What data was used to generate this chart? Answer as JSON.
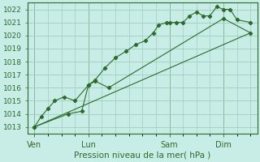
{
  "background_color": "#c8ede6",
  "grid_color": "#a0ccbe",
  "line_color": "#2d6a2d",
  "xlabel": "Pression niveau de la mer( hPa )",
  "ylim": [
    1012.5,
    1022.5
  ],
  "yticks": [
    1013,
    1014,
    1015,
    1016,
    1017,
    1018,
    1019,
    1020,
    1021,
    1022
  ],
  "xtick_labels": [
    "Ven",
    "Lun",
    "Sam",
    "Dim"
  ],
  "xtick_positions": [
    0,
    4,
    10,
    14
  ],
  "xlim": [
    -0.5,
    16.5
  ],
  "vline_positions": [
    0,
    4,
    10,
    14
  ],
  "series1_x": [
    0,
    0.5,
    1.0,
    1.5,
    2.2,
    3.0,
    4.0,
    4.5,
    5.2,
    6.0,
    6.8,
    7.5,
    8.2,
    8.8,
    9.2,
    9.8,
    10.0,
    10.5,
    11.0,
    11.5,
    12.0,
    12.5,
    13.0,
    13.5,
    14.0,
    14.5,
    15.0,
    16.0
  ],
  "series1_y": [
    1013.0,
    1013.8,
    1014.4,
    1015.0,
    1015.3,
    1015.0,
    1016.2,
    1016.6,
    1017.5,
    1018.3,
    1018.8,
    1019.3,
    1019.6,
    1020.2,
    1020.8,
    1021.0,
    1021.0,
    1021.0,
    1021.0,
    1021.5,
    1021.8,
    1021.5,
    1021.5,
    1022.2,
    1022.0,
    1022.0,
    1021.2,
    1021.0
  ],
  "series2_x": [
    0,
    2.5,
    3.5,
    4.0,
    4.5,
    5.5,
    14.0,
    16.0
  ],
  "series2_y": [
    1013.0,
    1014.0,
    1014.2,
    1016.2,
    1016.5,
    1016.0,
    1021.3,
    1020.2
  ],
  "series3_x": [
    0,
    16.0
  ],
  "series3_y": [
    1013.0,
    1020.2
  ]
}
